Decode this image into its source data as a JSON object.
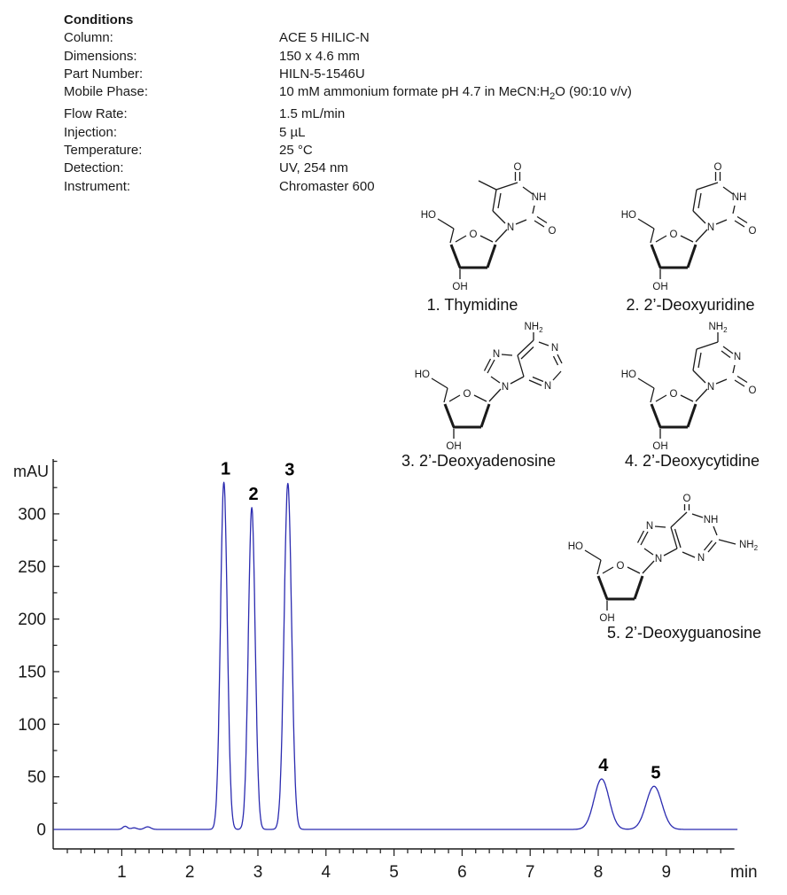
{
  "conditions": {
    "title": "Conditions",
    "rows": [
      {
        "label": "Column:",
        "value": "ACE 5 HILIC-N"
      },
      {
        "label": "Dimensions:",
        "value": "150 x 4.6 mm"
      },
      {
        "label": "Part Number:",
        "value": "HILN-5-1546U"
      },
      {
        "label": "Mobile Phase:",
        "value_pre": "10 mM ammonium formate pH 4.7 in MeCN:H",
        "value_sub": "2",
        "value_post": "O (90:10 v/v)"
      },
      {
        "label": "Flow Rate:",
        "value": "1.5 mL/min"
      },
      {
        "label": "Injection:",
        "value": "5 µL"
      },
      {
        "label": "Temperature:",
        "value": "25 °C"
      },
      {
        "label": "Detection:",
        "value": "UV, 254 nm"
      },
      {
        "label": "Instrument:",
        "value": "Chromaster 600"
      }
    ]
  },
  "structures": [
    {
      "caption": "1. Thymidine"
    },
    {
      "caption": "2. 2’-Deoxyuridine"
    },
    {
      "caption": "3. 2’-Deoxyadenosine"
    },
    {
      "caption": "4. 2’-Deoxycytidine"
    },
    {
      "caption": "5. 2’-Deoxyguanosine"
    }
  ],
  "chart_data": {
    "type": "line",
    "title": "",
    "xlabel": "min",
    "ylabel": "mAU",
    "xlim": [
      0,
      10.0
    ],
    "ylim": [
      0,
      350
    ],
    "x_ticks": [
      1,
      2,
      3,
      4,
      5,
      6,
      7,
      8,
      9
    ],
    "x_minor_step": 0.2,
    "y_ticks": [
      0,
      50,
      100,
      150,
      200,
      250,
      300
    ],
    "y_minor_step": 25,
    "grid": false,
    "legend": "none",
    "trace_color": "#2b2bb0",
    "axis_color": "#1a1a1a",
    "peaks": [
      {
        "label": "1",
        "time_min": 2.5,
        "height_mAU": 330,
        "sigma_min": 0.05,
        "compound": "Thymidine"
      },
      {
        "label": "2",
        "time_min": 2.91,
        "height_mAU": 306,
        "sigma_min": 0.05,
        "compound": "2’-Deoxyuridine"
      },
      {
        "label": "3",
        "time_min": 3.44,
        "height_mAU": 329,
        "sigma_min": 0.055,
        "compound": "2’-Deoxyadenosine"
      },
      {
        "label": "4",
        "time_min": 8.05,
        "height_mAU": 48,
        "sigma_min": 0.11,
        "compound": "2’-Deoxycytidine"
      },
      {
        "label": "5",
        "time_min": 8.82,
        "height_mAU": 41,
        "sigma_min": 0.115,
        "compound": "2’-Deoxyguanosine"
      }
    ],
    "baseline_noise": [
      {
        "time_min": 1.05,
        "height_mAU": 3.0,
        "sigma_min": 0.035
      },
      {
        "time_min": 1.18,
        "height_mAU": 1.5,
        "sigma_min": 0.04
      },
      {
        "time_min": 1.38,
        "height_mAU": 2.5,
        "sigma_min": 0.045
      }
    ]
  }
}
